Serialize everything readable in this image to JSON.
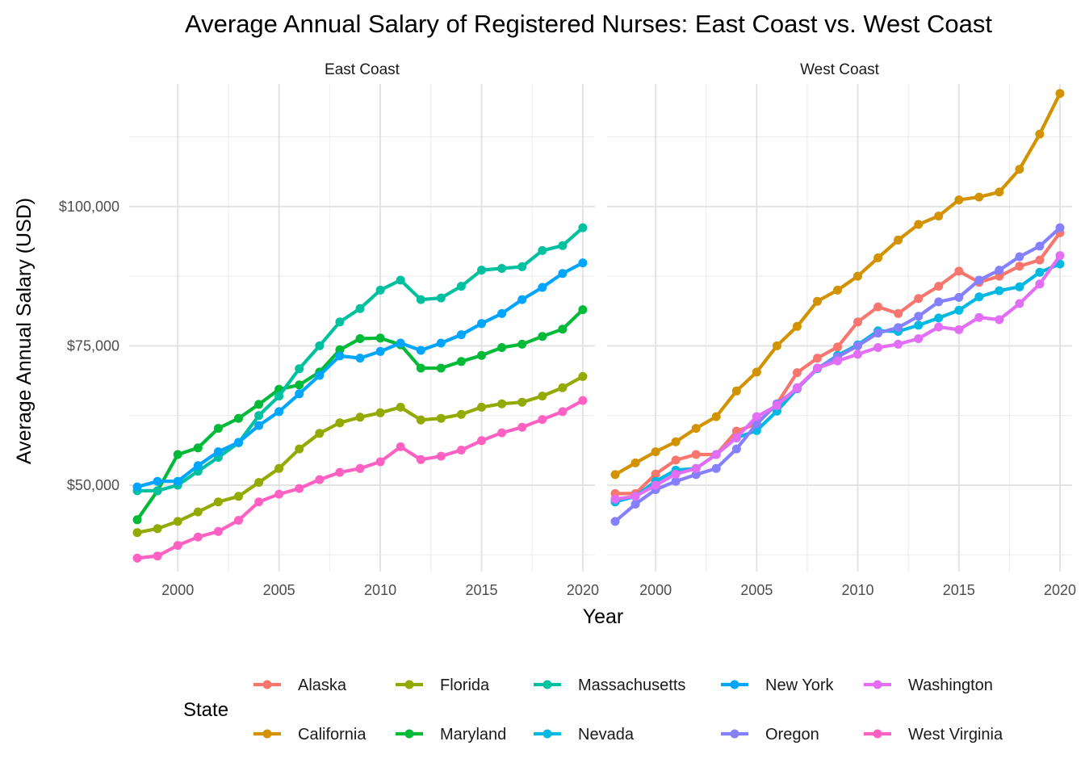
{
  "chart_data": {
    "type": "line",
    "title": "Average Annual Salary of Registered Nurses: East Coast vs. West Coast",
    "xlabel": "Year",
    "ylabel": "Average Annual Salary (USD)",
    "x": [
      1998,
      1999,
      2000,
      2001,
      2002,
      2003,
      2004,
      2005,
      2006,
      2007,
      2008,
      2009,
      2010,
      2011,
      2012,
      2013,
      2014,
      2015,
      2016,
      2017,
      2018,
      2019,
      2020
    ],
    "xlim": [
      1997.6,
      2020.6
    ],
    "ylim": [
      34500,
      122000
    ],
    "x_ticks": [
      2000,
      2005,
      2010,
      2015,
      2020
    ],
    "x_tick_labels": [
      "2000",
      "2005",
      "2010",
      "2015",
      "2020"
    ],
    "y_ticks": [
      50000,
      75000,
      100000
    ],
    "y_tick_labels": [
      "$50,000",
      "$75,000",
      "$100,000"
    ],
    "grid": true,
    "legend_title": "State",
    "legend_position": "bottom",
    "legend_order": [
      "Alaska",
      "California",
      "Florida",
      "Maryland",
      "Massachusetts",
      "Nevada",
      "New York",
      "Oregon",
      "Washington",
      "West Virginia"
    ],
    "colors": {
      "Alaska": "#F8766D",
      "California": "#D39200",
      "Florida": "#93AA00",
      "Maryland": "#00BA38",
      "Massachusetts": "#00C19F",
      "Nevada": "#00B9E3",
      "New York": "#00A5FF",
      "Oregon": "#8580FF",
      "Washington": "#E36EF6",
      "West Virginia": "#FF61C3"
    },
    "facets": [
      {
        "label": "East Coast",
        "series": [
          {
            "name": "Florida",
            "values": [
              41500,
              42200,
              43500,
              45200,
              47000,
              48000,
              50500,
              53000,
              56500,
              59300,
              61200,
              62200,
              63000,
              64000,
              61700,
              62000,
              62700,
              64000,
              64600,
              64900,
              66000,
              67500,
              69500
            ]
          },
          {
            "name": "Maryland",
            "values": [
              43800,
              49000,
              55500,
              56700,
              60200,
              62000,
              64500,
              67200,
              68000,
              70300,
              74300,
              76300,
              76400,
              75200,
              71000,
              71000,
              72200,
              73300,
              74700,
              75300,
              76700,
              78000,
              81500
            ]
          },
          {
            "name": "Massachusetts",
            "values": [
              49000,
              49000,
              50000,
              52500,
              55000,
              57600,
              62500,
              66000,
              70900,
              75000,
              79300,
              81700,
              85000,
              86800,
              83300,
              83600,
              85700,
              88600,
              88900,
              89200,
              92100,
              93000,
              96200
            ]
          },
          {
            "name": "New York",
            "values": [
              49700,
              50700,
              50700,
              53500,
              56000,
              57700,
              60700,
              63200,
              66400,
              69700,
              73200,
              72800,
              74000,
              75500,
              74200,
              75500,
              77000,
              79000,
              80800,
              83300,
              85500,
              88000,
              89900
            ]
          },
          {
            "name": "West Virginia",
            "values": [
              36900,
              37300,
              39200,
              40700,
              41700,
              43700,
              47000,
              48400,
              49400,
              51000,
              52300,
              53000,
              54200,
              56900,
              54600,
              55200,
              56300,
              58000,
              59400,
              60400,
              61800,
              63200,
              65200
            ]
          }
        ]
      },
      {
        "label": "West Coast",
        "series": [
          {
            "name": "California",
            "values": [
              51900,
              54000,
              56000,
              57800,
              60200,
              62300,
              66900,
              70300,
              75000,
              78500,
              83000,
              85000,
              87500,
              90800,
              94000,
              96800,
              98300,
              101200,
              101700,
              102600,
              106700,
              113000,
              120300
            ]
          },
          {
            "name": "Alaska",
            "values": [
              48500,
              48500,
              52000,
              54500,
              55500,
              55500,
              59700,
              61000,
              64600,
              70200,
              72800,
              74800,
              79300,
              82000,
              80800,
              83500,
              85700,
              88400,
              86400,
              87500,
              89300,
              90400,
              95300
            ]
          },
          {
            "name": "Nevada",
            "values": [
              47000,
              48000,
              50700,
              52700,
              53000,
              55500,
              58500,
              59800,
              63300,
              67300,
              70900,
              73300,
              75200,
              77700,
              77600,
              78700,
              80000,
              81400,
              83800,
              84900,
              85600,
              88200,
              89700
            ]
          },
          {
            "name": "Oregon",
            "values": [
              43500,
              46600,
              49200,
              50700,
              51900,
              53000,
              56500,
              61000,
              64600,
              67300,
              71000,
              73000,
              75000,
              77300,
              78300,
              80300,
              82900,
              83700,
              86800,
              88600,
              91000,
              92900,
              96200
            ]
          },
          {
            "name": "Washington",
            "values": [
              47500,
              48000,
              50000,
              52000,
              53000,
              55500,
              58500,
              62300,
              64300,
              67500,
              71000,
              72300,
              73500,
              74700,
              75300,
              76300,
              78400,
              77900,
              80100,
              79700,
              82600,
              86100,
              91200
            ]
          }
        ]
      }
    ]
  }
}
